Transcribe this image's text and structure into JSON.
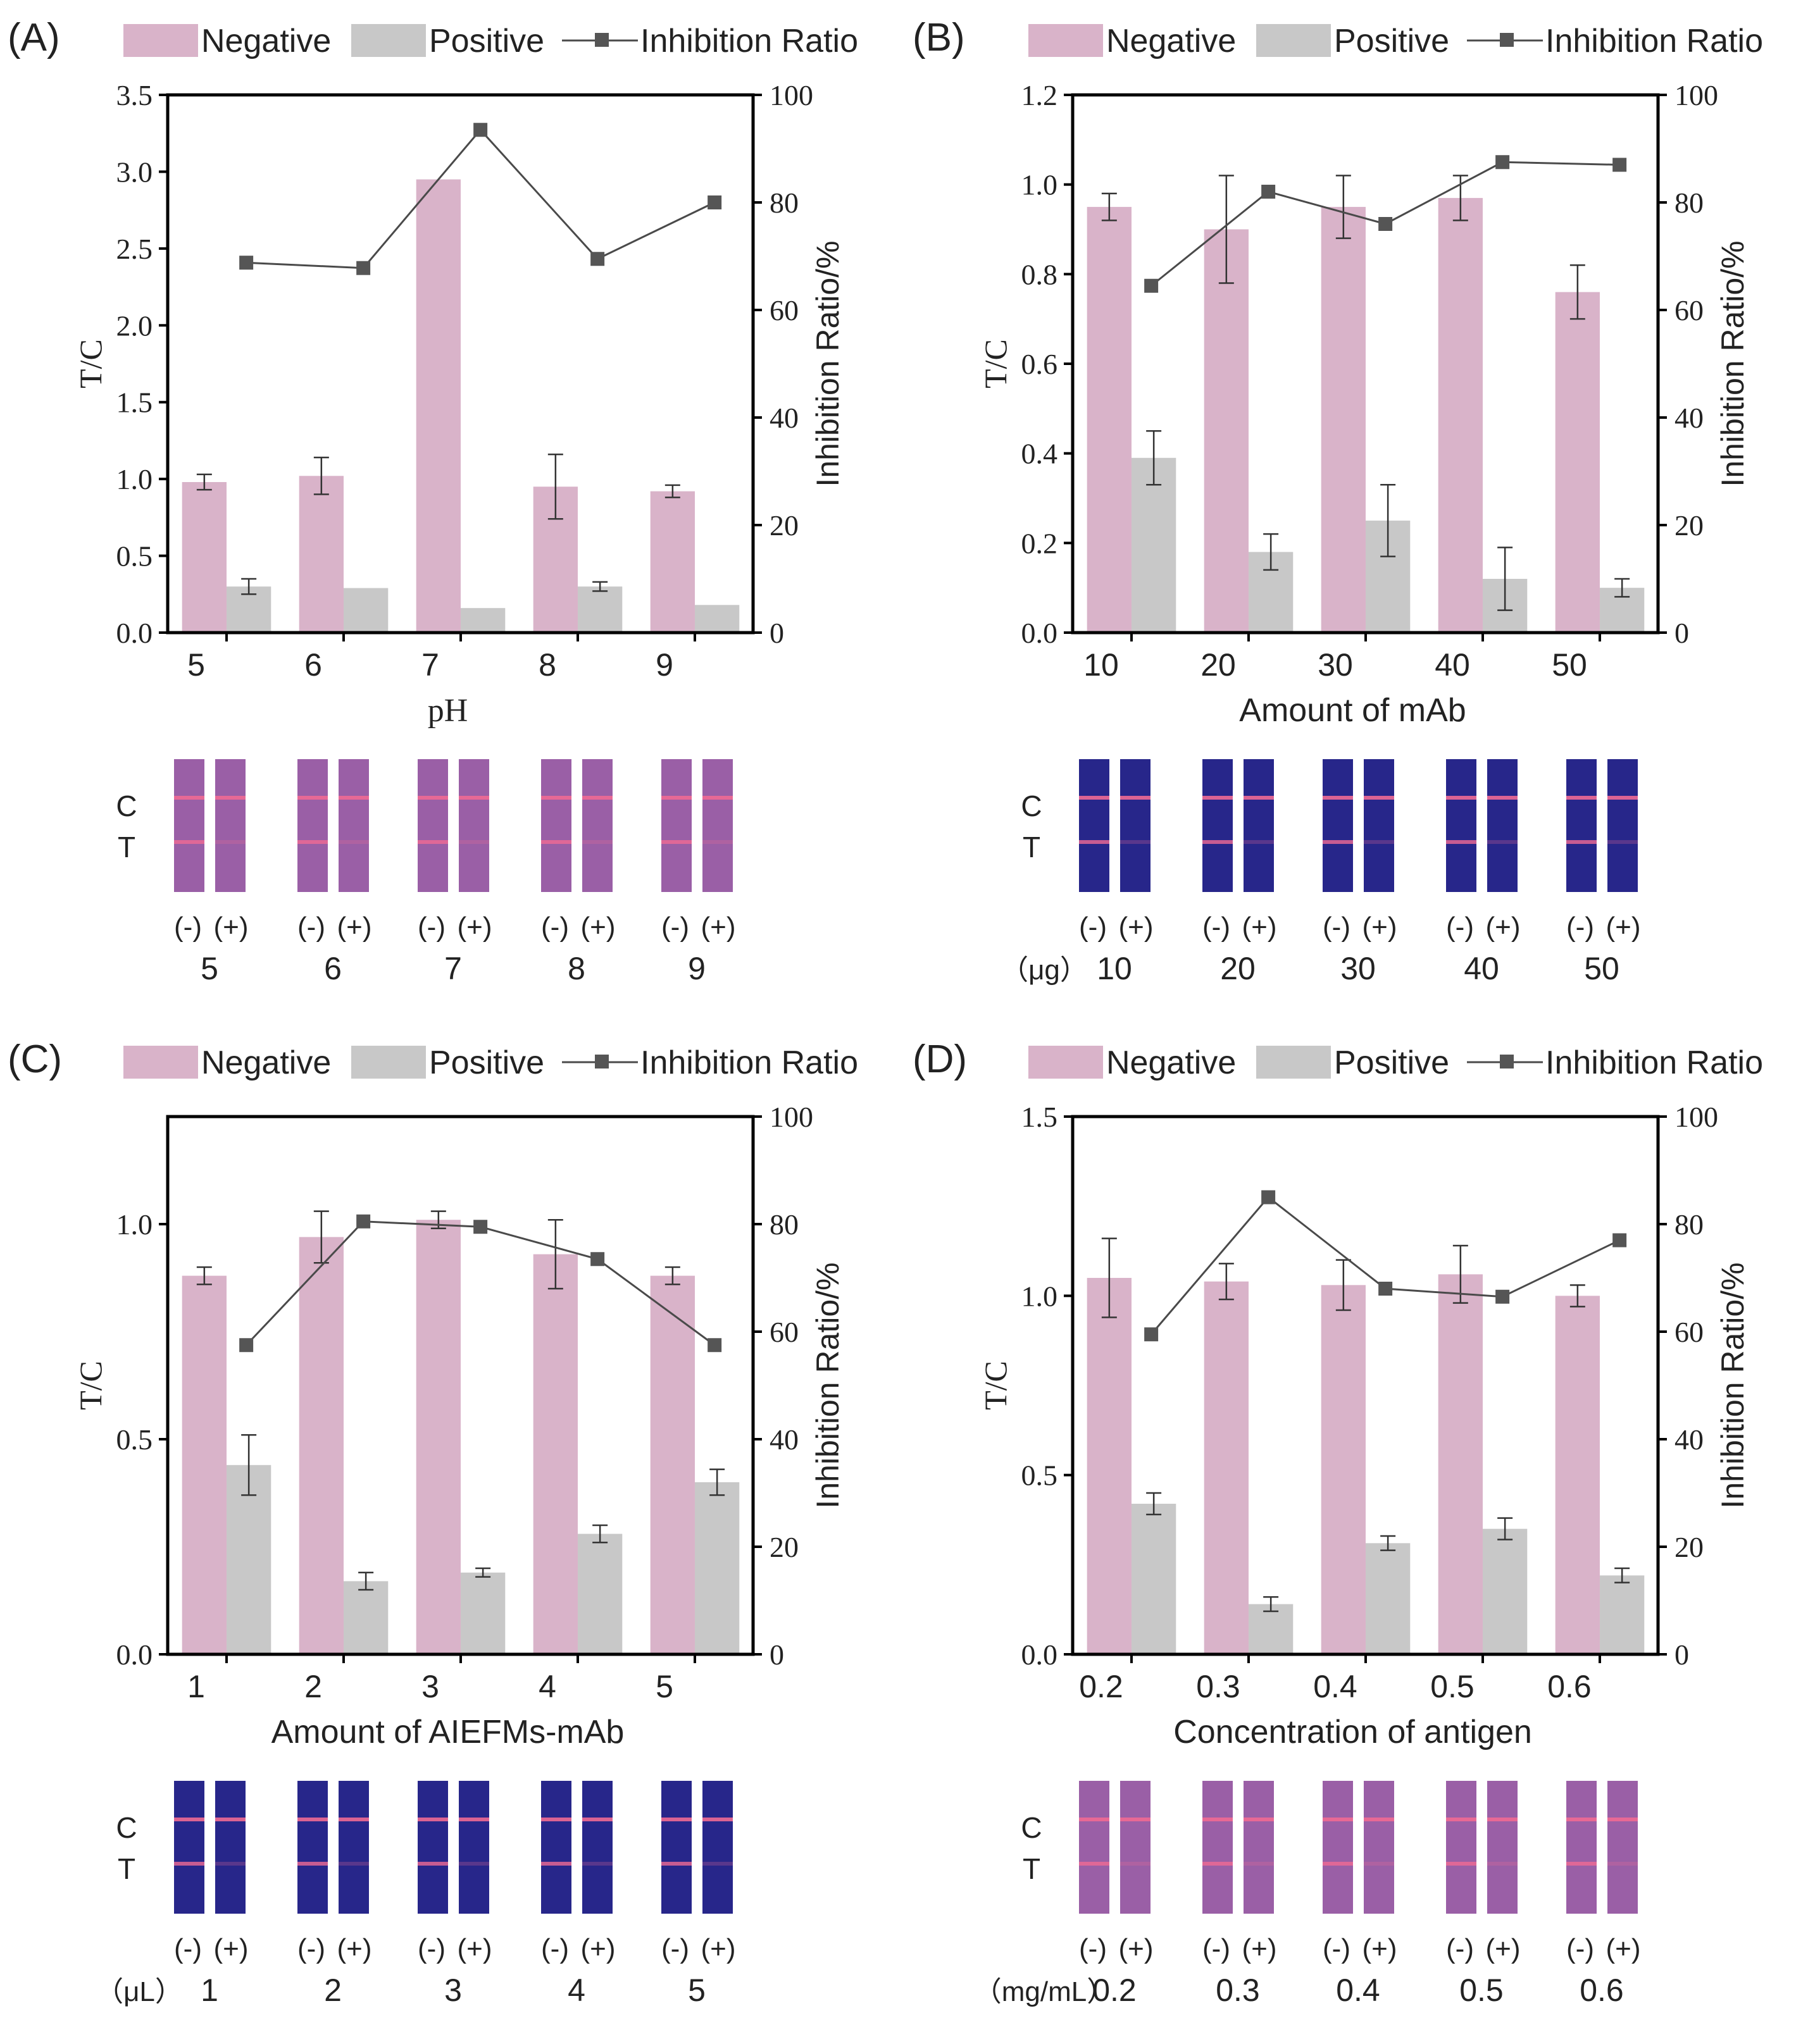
{
  "colors": {
    "negative": "#d9b3c9",
    "positive": "#c8c8c8",
    "line": "#4a4a4a",
    "marker": "#555555",
    "axis": "#000000",
    "strip_pink_bg": "#9a5fa6",
    "strip_blue_bg": "#27268a",
    "band": "#f06a94"
  },
  "legend": {
    "negative": "Negative",
    "positive": "Positive",
    "ratio": "Inhibition Ratio"
  },
  "chart_data": [
    {
      "panel": "(A)",
      "type": "bar",
      "xlabel": "pH",
      "ylabel": "T/C",
      "y2label": "Inhibition Ratio/%",
      "categories": [
        "5",
        "6",
        "7",
        "8",
        "9"
      ],
      "ylim": [
        0,
        3.5
      ],
      "yticks": [
        "0.0",
        "0.5",
        "1.0",
        "1.5",
        "2.0",
        "2.5",
        "3.0",
        "3.5"
      ],
      "y2lim": [
        0,
        100
      ],
      "y2ticks": [
        "0",
        "20",
        "40",
        "60",
        "80",
        "100"
      ],
      "series": [
        {
          "name": "Negative",
          "values": [
            0.98,
            1.02,
            2.95,
            0.95,
            0.92
          ],
          "errors": [
            0.05,
            0.12,
            0.0,
            0.21,
            0.04
          ]
        },
        {
          "name": "Positive",
          "values": [
            0.3,
            0.29,
            0.16,
            0.3,
            0.18
          ],
          "errors": [
            0.05,
            0.0,
            0.0,
            0.03,
            0.0
          ]
        },
        {
          "name": "Inhibition Ratio",
          "values": [
            68.8,
            67.8,
            93.5,
            69.5,
            80.0
          ]
        }
      ],
      "strips": {
        "theme": "pink",
        "unit": "",
        "labels": [
          "5",
          "6",
          "7",
          "8",
          "9"
        ],
        "neg": "(-)",
        "pos": "(+)",
        "c": "C",
        "t": "T"
      }
    },
    {
      "panel": "(B)",
      "type": "bar",
      "xlabel": "Amount of mAb",
      "ylabel": "T/C",
      "y2label": "Inhibition Ratio/%",
      "categories": [
        "10",
        "20",
        "30",
        "40",
        "50"
      ],
      "ylim": [
        0,
        1.2
      ],
      "yticks": [
        "0.0",
        "0.2",
        "0.4",
        "0.6",
        "0.8",
        "1.0",
        "1.2"
      ],
      "y2lim": [
        0,
        100
      ],
      "y2ticks": [
        "0",
        "20",
        "40",
        "60",
        "80",
        "100"
      ],
      "series": [
        {
          "name": "Negative",
          "values": [
            0.95,
            0.9,
            0.95,
            0.97,
            0.76
          ],
          "errors": [
            0.03,
            0.12,
            0.07,
            0.05,
            0.06
          ]
        },
        {
          "name": "Positive",
          "values": [
            0.39,
            0.18,
            0.25,
            0.12,
            0.1
          ],
          "errors": [
            0.06,
            0.04,
            0.08,
            0.07,
            0.02
          ]
        },
        {
          "name": "Inhibition Ratio",
          "values": [
            64.5,
            82.0,
            76.0,
            87.5,
            87.0
          ]
        }
      ],
      "strips": {
        "theme": "blue",
        "unit": "（μg）",
        "labels": [
          "10",
          "20",
          "30",
          "40",
          "50"
        ],
        "neg": "(-)",
        "pos": "(+)",
        "c": "C",
        "t": "T"
      }
    },
    {
      "panel": "(C)",
      "type": "bar",
      "xlabel": "Amount of AIEFMs-mAb",
      "ylabel": "T/C",
      "y2label": "Inhibition Ratio/%",
      "categories": [
        "1",
        "2",
        "3",
        "4",
        "5"
      ],
      "ylim": [
        0,
        1.25
      ],
      "yticks": [
        "0.0",
        "0.5",
        "1.0"
      ],
      "ytickvals": [
        0,
        0.5,
        1.0
      ],
      "y2lim": [
        0,
        100
      ],
      "y2ticks": [
        "0",
        "20",
        "40",
        "60",
        "80",
        "100"
      ],
      "series": [
        {
          "name": "Negative",
          "values": [
            0.88,
            0.97,
            1.01,
            0.93,
            0.88
          ],
          "errors": [
            0.02,
            0.06,
            0.02,
            0.08,
            0.02
          ]
        },
        {
          "name": "Positive",
          "values": [
            0.44,
            0.17,
            0.19,
            0.28,
            0.4
          ],
          "errors": [
            0.07,
            0.02,
            0.01,
            0.02,
            0.03
          ]
        },
        {
          "name": "Inhibition Ratio",
          "values": [
            57.5,
            80.5,
            79.5,
            73.5,
            57.5
          ]
        }
      ],
      "strips": {
        "theme": "blue",
        "unit": "（μL）",
        "labels": [
          "1",
          "2",
          "3",
          "4",
          "5"
        ],
        "neg": "(-)",
        "pos": "(+)",
        "c": "C",
        "t": "T"
      }
    },
    {
      "panel": "(D)",
      "type": "bar",
      "xlabel": "Concentration of antigen",
      "ylabel": "T/C",
      "y2label": "Inhibition Ratio/%",
      "categories": [
        "0.2",
        "0.3",
        "0.4",
        "0.5",
        "0.6"
      ],
      "ylim": [
        0,
        1.5
      ],
      "yticks": [
        "0.0",
        "0.5",
        "1.0",
        "1.5"
      ],
      "ytickvals": [
        0,
        0.5,
        1.0,
        1.5
      ],
      "y2lim": [
        0,
        100
      ],
      "y2ticks": [
        "0",
        "20",
        "40",
        "60",
        "80",
        "100"
      ],
      "series": [
        {
          "name": "Negative",
          "values": [
            1.05,
            1.04,
            1.03,
            1.06,
            1.0
          ],
          "errors": [
            0.11,
            0.05,
            0.07,
            0.08,
            0.03
          ]
        },
        {
          "name": "Positive",
          "values": [
            0.42,
            0.14,
            0.31,
            0.35,
            0.22
          ],
          "errors": [
            0.03,
            0.02,
            0.02,
            0.03,
            0.02
          ]
        },
        {
          "name": "Inhibition Ratio",
          "values": [
            59.5,
            85.0,
            68.0,
            66.5,
            77.0
          ]
        }
      ],
      "strips": {
        "theme": "pink",
        "unit": "（mg/mL）",
        "labels": [
          "0.2",
          "0.3",
          "0.4",
          "0.5",
          "0.6"
        ],
        "neg": "(-)",
        "pos": "(+)",
        "c": "C",
        "t": "T"
      }
    }
  ]
}
